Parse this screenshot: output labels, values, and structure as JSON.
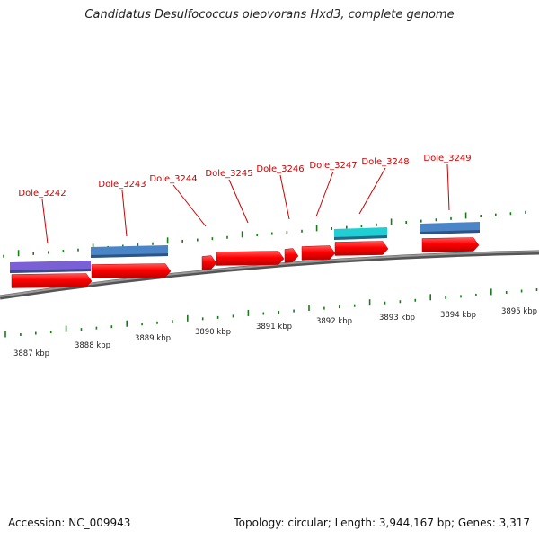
{
  "title": "Candidatus Desulfococcus oleovorans Hxd3, complete genome",
  "footer": {
    "accession": "Accession: NC_009943",
    "summary": "Topology: circular; Length: 3,944,167 bp; Genes: 3,317"
  },
  "colors": {
    "backbone": "#777777",
    "tick": "#1a7a1a",
    "cds": "#ff0000",
    "gene_label": "#cc0000",
    "purple_bar": "#7b5fd6",
    "steelblue_bar": "#4a85c8",
    "cyan_bar": "#1fcfd4"
  },
  "ruler": {
    "kbp_labels": [
      "3887 kbp",
      "3888 kbp",
      "3889 kbp",
      "3890 kbp",
      "3891 kbp",
      "3892 kbp",
      "3893 kbp",
      "3894 kbp",
      "3895 kbp"
    ]
  },
  "genes": [
    {
      "label": "Dole_3242"
    },
    {
      "label": "Dole_3243"
    },
    {
      "label": "Dole_3244"
    },
    {
      "label": "Dole_3245"
    },
    {
      "label": "Dole_3246"
    },
    {
      "label": "Dole_3247"
    },
    {
      "label": "Dole_3248"
    },
    {
      "label": "Dole_3249"
    }
  ]
}
